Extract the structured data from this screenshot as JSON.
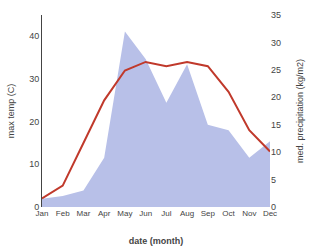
{
  "chart_data": {
    "type": "line",
    "categories": [
      "Jan",
      "Feb",
      "Mar",
      "Apr",
      "May",
      "Jun",
      "Jul",
      "Aug",
      "Sep",
      "Oct",
      "Nov",
      "Dec"
    ],
    "series": [
      {
        "type": "area",
        "axis": "y2",
        "color": "#b8c0e8",
        "values": [
          1.5,
          2,
          3,
          9,
          32,
          27,
          19,
          26,
          15,
          14,
          9,
          12
        ]
      },
      {
        "type": "line",
        "color": "#c0392b",
        "values": [
          2,
          5,
          15,
          25,
          32,
          34,
          33,
          34,
          33,
          27,
          18,
          13
        ]
      }
    ],
    "xlabel": "date (month)",
    "ylabel": "max temp (C)",
    "y2label": "med. precipitation (kg/m2)",
    "ylim": [
      0,
      45
    ],
    "yticks": [
      0,
      10,
      20,
      30,
      40
    ],
    "y2lim": [
      0,
      35
    ],
    "y2ticks": [
      0,
      5,
      10,
      15,
      20,
      25,
      30,
      35
    ],
    "grid": false
  }
}
